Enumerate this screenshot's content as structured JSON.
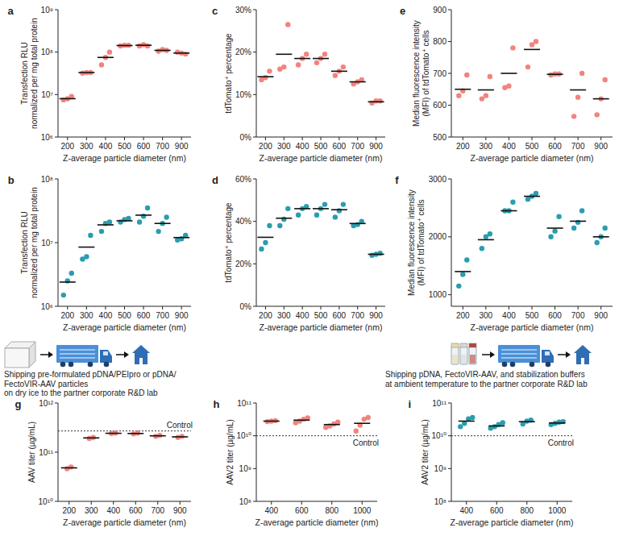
{
  "chart_data": [
    {
      "panel": "a",
      "type": "scatter",
      "marker": "circle",
      "color": "#F2837E",
      "x_label": "Z-average particle diameter (nm)",
      "y_label": [
        "Transfection RLU",
        "normalized per mg total protein"
      ],
      "log": "y",
      "ylim": [
        1000000.0,
        1000000000.0
      ],
      "yticks": [
        {
          "value": 1000000.0,
          "label": "10⁶"
        },
        {
          "value": 10000000.0,
          "label": "10⁷"
        },
        {
          "value": 100000000.0,
          "label": "10⁸"
        },
        {
          "value": 1000000000.0,
          "label": "10⁹"
        }
      ],
      "categories": [
        "200",
        "300",
        "400",
        "500",
        "600",
        "700",
        "900"
      ],
      "values": [
        [
          7500000.0,
          8000000.0,
          9000000.0
        ],
        [
          32000000.0,
          33000000.0,
          33000000.0
        ],
        [
          50000000.0,
          75000000.0,
          100000000.0
        ],
        [
          140000000.0,
          145000000.0,
          145000000.0
        ],
        [
          140000000.0,
          150000000.0,
          140000000.0
        ],
        [
          105000000.0,
          115000000.0,
          110000000.0
        ],
        [
          100000000.0,
          95000000.0,
          90000000.0
        ]
      ],
      "mean": [
        8000000.0,
        33000000.0,
        75000000.0,
        143000000.0,
        145000000.0,
        110000000.0,
        95000000.0
      ]
    },
    {
      "panel": "b",
      "type": "scatter",
      "marker": "circle",
      "color": "#2A9DAF",
      "x_label": "Z-average particle diameter (nm)",
      "y_label": [
        "Transfection RLU",
        "normalized per mg total protein"
      ],
      "log": "y",
      "ylim": [
        1000000.0,
        100000000.0
      ],
      "yticks": [
        {
          "value": 1000000.0,
          "label": "10⁶"
        },
        {
          "value": 10000000.0,
          "label": "10⁷"
        },
        {
          "value": 100000000.0,
          "label": "10⁸"
        }
      ],
      "categories": [
        "200",
        "300",
        "400",
        "500",
        "600",
        "700",
        "900"
      ],
      "values": [
        [
          1500000.0,
          2500000.0,
          3300000.0
        ],
        [
          5500000.0,
          6000000.0,
          13000000.0
        ],
        [
          15000000.0,
          20000000.0,
          21000000.0
        ],
        [
          21000000.0,
          23000000.0,
          24000000.0
        ],
        [
          21000000.0,
          26000000.0,
          35000000.0
        ],
        [
          15000000.0,
          20000000.0,
          25000000.0
        ],
        [
          11000000.0,
          11500000.0,
          13000000.0
        ]
      ],
      "mean": [
        2400000.0,
        8500000.0,
        19000000.0,
        22000000.0,
        27000000.0,
        20000000.0,
        12000000.0
      ]
    },
    {
      "panel": "c",
      "type": "scatter",
      "marker": "circle",
      "color": "#F2837E",
      "x_label": "Z-average particle diameter (nm)",
      "y_label": [
        "tdTomato⁺ percentage"
      ],
      "ylim": [
        0,
        30
      ],
      "yticks": [
        {
          "value": 0,
          "label": "0%"
        },
        {
          "value": 10,
          "label": "10%"
        },
        {
          "value": 20,
          "label": "20%"
        },
        {
          "value": 30,
          "label": "30%"
        }
      ],
      "categories": [
        "200",
        "300",
        "400",
        "500",
        "600",
        "700",
        "900"
      ],
      "values": [
        [
          13.5,
          14,
          15.5
        ],
        [
          16,
          16.5,
          26.5
        ],
        [
          17,
          18.5,
          19.5
        ],
        [
          17.5,
          18.5,
          19.5
        ],
        [
          14.5,
          15.5,
          16.5
        ],
        [
          12.5,
          13,
          13.5
        ],
        [
          8,
          8.5,
          8.5
        ]
      ],
      "mean": [
        14.2,
        19.5,
        18.5,
        18.5,
        15.5,
        13,
        8.3
      ]
    },
    {
      "panel": "d",
      "type": "scatter",
      "marker": "circle",
      "color": "#2A9DAF",
      "x_label": "Z-average particle diameter (nm)",
      "y_label": [
        "tdTomato⁺ percentage"
      ],
      "ylim": [
        0,
        60
      ],
      "yticks": [
        {
          "value": 0,
          "label": "0%"
        },
        {
          "value": 20,
          "label": "20%"
        },
        {
          "value": 40,
          "label": "40%"
        },
        {
          "value": 60,
          "label": "60%"
        }
      ],
      "categories": [
        "200",
        "300",
        "400",
        "500",
        "600",
        "700",
        "900"
      ],
      "values": [
        [
          27,
          30,
          38
        ],
        [
          38,
          41,
          46
        ],
        [
          43,
          46,
          47
        ],
        [
          43,
          46,
          48
        ],
        [
          42,
          45,
          48
        ],
        [
          38,
          38.5,
          40
        ],
        [
          24,
          24.5,
          25
        ]
      ],
      "mean": [
        32.5,
        41.5,
        46,
        46,
        45.5,
        39,
        24.5
      ]
    },
    {
      "panel": "e",
      "type": "scatter",
      "marker": "circle",
      "color": "#F2837E",
      "x_label": "Z-average particle diameter (nm)",
      "y_label": [
        "Median fluorescence intensity",
        "(MFI) of tdTomato⁺ cells"
      ],
      "ylim": [
        500,
        900
      ],
      "yticks": [
        500,
        600,
        700,
        800,
        900
      ],
      "categories": [
        "200",
        "300",
        "400",
        "500",
        "600",
        "700",
        "900"
      ],
      "values": [
        [
          630,
          645,
          695
        ],
        [
          620,
          630,
          690
        ],
        [
          655,
          660,
          780
        ],
        [
          720,
          790,
          800
        ],
        [
          695,
          698,
          698
        ],
        [
          565,
          625,
          700
        ],
        [
          570,
          620,
          680
        ]
      ],
      "mean": [
        650,
        648,
        700,
        775,
        697,
        648,
        620
      ]
    },
    {
      "panel": "f",
      "type": "scatter",
      "marker": "circle",
      "color": "#2A9DAF",
      "x_label": "Z-average particle diameter (nm)",
      "y_label": [
        "Median fluorescence intensity",
        "(MFI) of tdTomato⁺ cells"
      ],
      "ylim": [
        800,
        3000
      ],
      "yticks": [
        1000,
        2000,
        3000
      ],
      "categories": [
        "200",
        "300",
        "400",
        "500",
        "600",
        "700",
        "900"
      ],
      "values": [
        [
          1150,
          1350,
          1600
        ],
        [
          1800,
          2000,
          2050
        ],
        [
          2450,
          2450,
          2600
        ],
        [
          2650,
          2700,
          2750
        ],
        [
          2000,
          2100,
          2350
        ],
        [
          2150,
          2250,
          2450
        ],
        [
          1900,
          2000,
          2150
        ]
      ],
      "mean": [
        1400,
        1950,
        2450,
        2700,
        2150,
        2270,
        2000
      ]
    },
    {
      "panel": "g",
      "type": "scatter",
      "marker": "circle",
      "color": "#F2837E",
      "x_label": "Z-average particle diameter (nm)",
      "y_label": [
        "AAV titer (µg/mL)"
      ],
      "log": "y",
      "ylim": [
        10000000000.0,
        1000000000000.0
      ],
      "yticks": [
        {
          "value": 10000000000.0,
          "label": "10¹⁰"
        },
        {
          "value": 100000000000.0,
          "label": "10¹¹"
        },
        {
          "value": 1000000000000.0,
          "label": "10¹²"
        }
      ],
      "categories": [
        "200",
        "300",
        "400",
        "600",
        "700",
        "900"
      ],
      "values": [
        [
          46000000000.0,
          50000000000.0
        ],
        [
          190000000000.0,
          200000000000.0
        ],
        [
          240000000000.0,
          245000000000.0
        ],
        [
          235000000000.0,
          245000000000.0
        ],
        [
          210000000000.0,
          220000000000.0
        ],
        [
          200000000000.0,
          210000000000.0
        ]
      ],
      "mean": [
        48000000000.0,
        195000000000.0,
        242000000000.0,
        240000000000.0,
        215000000000.0,
        205000000000.0
      ],
      "reference_line": {
        "value": 270000000000.0,
        "label": "Control"
      }
    },
    {
      "panel": "h",
      "type": "scatter",
      "marker": "circle",
      "color": "#F2837E",
      "x_label": "Z-average particle diameter (nm)",
      "y_label": [
        "AAV2 titer (µg/mL)"
      ],
      "log": "y",
      "ylim": [
        100000000.0,
        100000000000.0
      ],
      "yticks": [
        {
          "value": 100000000.0,
          "label": "10⁸"
        },
        {
          "value": 1000000000.0,
          "label": "10⁹"
        },
        {
          "value": 10000000000.0,
          "label": "10¹⁰"
        },
        {
          "value": 100000000000.0,
          "label": "10¹¹"
        }
      ],
      "categories": [
        "400",
        "600",
        "800",
        "1000"
      ],
      "values": [
        [
          27000000000.0,
          28000000000.0,
          29000000000.0
        ],
        [
          25000000000.0,
          28000000000.0,
          32000000000.0,
          35000000000.0
        ],
        [
          18000000000.0,
          20000000000.0,
          23000000000.0,
          26000000000.0
        ],
        [
          14000000000.0,
          21000000000.0,
          32000000000.0,
          36000000000.0
        ]
      ],
      "mean": [
        28000000000.0,
        30000000000.0,
        22000000000.0,
        24000000000.0
      ],
      "reference_line": {
        "value": 10000000000.0,
        "label": "Control"
      }
    },
    {
      "panel": "i",
      "type": "scatter",
      "marker": "circle",
      "color": "#2A9DAF",
      "x_label": "Z-average particle diameter (nm)",
      "y_label": [
        "AAV2 titer (µg/mL)"
      ],
      "log": "y",
      "ylim": [
        100000000.0,
        100000000000.0
      ],
      "yticks": [
        {
          "value": 100000000.0,
          "label": "10⁸"
        },
        {
          "value": 1000000000.0,
          "label": "10⁹"
        },
        {
          "value": 10000000000.0,
          "label": "10¹⁰"
        },
        {
          "value": 100000000000.0,
          "label": "10¹¹"
        }
      ],
      "categories": [
        "400",
        "600",
        "800",
        "1000"
      ],
      "values": [
        [
          19000000000.0,
          24000000000.0,
          33000000000.0,
          36000000000.0
        ],
        [
          17000000000.0,
          19000000000.0,
          22000000000.0,
          25000000000.0
        ],
        [
          23000000000.0,
          28000000000.0,
          30000000000.0
        ],
        [
          22000000000.0,
          24000000000.0,
          26000000000.0,
          27000000000.0
        ]
      ],
      "mean": [
        28000000000.0,
        20000000000.0,
        27000000000.0,
        24500000000.0
      ],
      "reference_line": {
        "value": 10000000000.0,
        "label": "Control"
      }
    }
  ],
  "captions": [
    [
      "Shipping pre-formulated pDNA/PEIpro or pDNA/",
      "FectoVIR-AAV particles",
      "on dry ice to the partner corporate R&D lab"
    ],
    [
      "Shipping pDNA, FectoVIR-AAV, and stabilization buffers",
      "at ambient temperature to the partner corporate R&D lab"
    ]
  ]
}
